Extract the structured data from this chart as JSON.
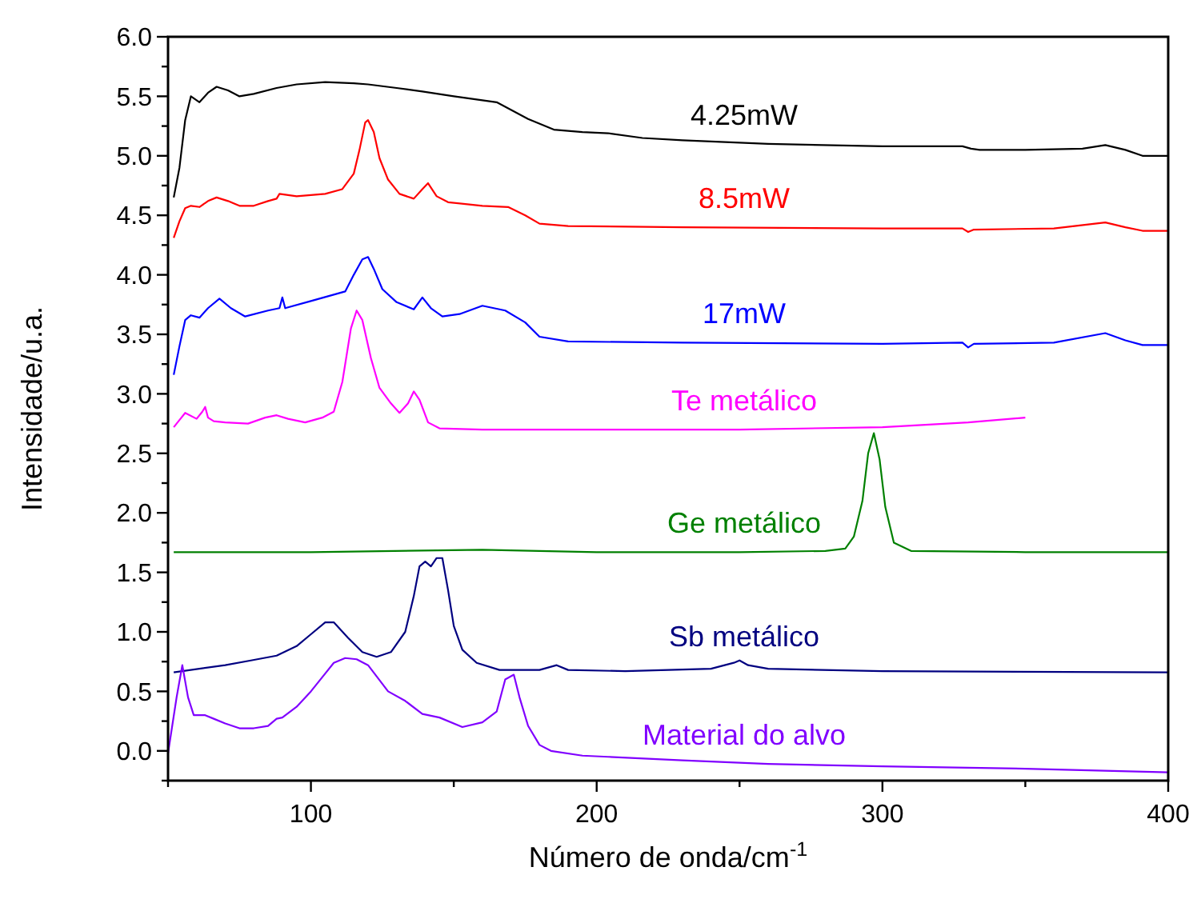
{
  "chart_data": {
    "type": "line",
    "xlabel": "Número de onda/cm$^{-1}$",
    "ylabel": "Intensidade/u.a.",
    "xlim": [
      50,
      400
    ],
    "xticks": [
      {
        "value": 50,
        "label": null
      },
      100,
      {
        "value": 150,
        "label": null
      },
      200,
      {
        "value": 250,
        "label": null
      },
      300,
      {
        "value": 350,
        "label": null
      },
      400
    ],
    "ylim": [
      -0.25,
      6
    ],
    "yticks": [
      {
        "value": -0.25,
        "label": null
      },
      {
        "value": 0,
        "label": "0.0"
      },
      {
        "value": 0.25,
        "label": null
      },
      {
        "value": 0.5,
        "label": "0.5"
      },
      {
        "value": 0.75,
        "label": null
      },
      {
        "value": 1,
        "label": "1.0"
      },
      {
        "value": 1.25,
        "label": null
      },
      {
        "value": 1.5,
        "label": "1.5"
      },
      {
        "value": 1.75,
        "label": null
      },
      {
        "value": 2,
        "label": "2.0"
      },
      {
        "value": 2.25,
        "label": null
      },
      {
        "value": 2.5,
        "label": "2.5"
      },
      {
        "value": 2.75,
        "label": null
      },
      {
        "value": 3,
        "label": "3.0"
      },
      {
        "value": 3.25,
        "label": null
      },
      {
        "value": 3.5,
        "label": "3.5"
      },
      {
        "value": 3.75,
        "label": null
      },
      {
        "value": 4,
        "label": "4.0"
      },
      {
        "value": 4.25,
        "label": null
      },
      {
        "value": 4.5,
        "label": "4.5"
      },
      {
        "value": 4.75,
        "label": null
      },
      {
        "value": 5,
        "label": "5.0"
      },
      {
        "value": 5.25,
        "label": null
      },
      {
        "value": 5.5,
        "label": "5.5"
      },
      {
        "value": 5.75,
        "label": null
      },
      {
        "value": 6,
        "label": "6.0"
      }
    ],
    "series": [
      {
        "name": "4.25mW",
        "color": "#000000",
        "x": [
          52,
          54,
          56,
          58,
          61,
          64,
          67,
          71,
          75,
          80,
          88,
          95,
          105,
          115,
          120,
          130,
          139,
          150,
          165,
          176,
          185,
          195,
          204,
          216,
          230,
          260,
          300,
          328,
          331,
          334,
          350,
          370,
          378,
          385,
          391,
          400
        ],
        "values": [
          4.65,
          4.9,
          5.3,
          5.5,
          5.45,
          5.53,
          5.58,
          5.55,
          5.5,
          5.52,
          5.57,
          5.6,
          5.62,
          5.61,
          5.6,
          5.57,
          5.54,
          5.5,
          5.45,
          5.31,
          5.22,
          5.2,
          5.19,
          5.15,
          5.13,
          5.1,
          5.08,
          5.08,
          5.06,
          5.05,
          5.05,
          5.06,
          5.09,
          5.05,
          5.0,
          5.0
        ]
      },
      {
        "name": "8.5mW",
        "color": "#ff0000",
        "x": [
          52,
          54,
          56,
          58,
          61,
          64,
          67,
          71,
          75,
          80,
          85,
          88,
          89,
          95,
          105,
          111,
          115,
          117,
          119,
          120,
          122,
          124,
          127,
          131,
          136,
          139,
          141,
          144,
          148,
          160,
          169,
          175,
          180,
          190,
          230,
          300,
          328,
          330,
          332,
          360,
          378,
          385,
          391,
          400
        ],
        "values": [
          4.31,
          4.45,
          4.56,
          4.58,
          4.57,
          4.62,
          4.65,
          4.62,
          4.58,
          4.58,
          4.62,
          4.64,
          4.68,
          4.66,
          4.68,
          4.72,
          4.85,
          5.05,
          5.28,
          5.3,
          5.2,
          4.98,
          4.8,
          4.68,
          4.64,
          4.72,
          4.77,
          4.66,
          4.61,
          4.58,
          4.57,
          4.5,
          4.43,
          4.41,
          4.4,
          4.39,
          4.39,
          4.36,
          4.38,
          4.39,
          4.44,
          4.4,
          4.37,
          4.37
        ]
      },
      {
        "name": "17mW",
        "color": "#0000ff",
        "x": [
          52,
          54,
          56,
          58,
          61,
          64,
          68,
          72,
          77,
          85,
          89,
          90,
          91,
          100,
          112,
          115,
          118,
          120,
          122,
          125,
          130,
          136,
          139,
          142,
          146,
          152,
          160,
          168,
          175,
          180,
          190,
          230,
          300,
          328,
          330,
          332,
          360,
          378,
          385,
          391,
          400
        ],
        "values": [
          3.16,
          3.4,
          3.62,
          3.66,
          3.64,
          3.72,
          3.8,
          3.72,
          3.65,
          3.7,
          3.72,
          3.81,
          3.72,
          3.78,
          3.86,
          4.0,
          4.13,
          4.15,
          4.05,
          3.88,
          3.77,
          3.71,
          3.81,
          3.72,
          3.65,
          3.67,
          3.74,
          3.7,
          3.6,
          3.48,
          3.44,
          3.43,
          3.42,
          3.43,
          3.39,
          3.42,
          3.43,
          3.51,
          3.45,
          3.41,
          3.41
        ]
      },
      {
        "name": "Te metálico",
        "color": "#ff00ff",
        "x": [
          52,
          54,
          56,
          60,
          62,
          63,
          64,
          66,
          70,
          78,
          84,
          88,
          92,
          98,
          104,
          108,
          111,
          114,
          116,
          118,
          121,
          124,
          128,
          131,
          134,
          136,
          138,
          141,
          145,
          160,
          200,
          250,
          300,
          330,
          350
        ],
        "values": [
          2.72,
          2.78,
          2.84,
          2.79,
          2.85,
          2.89,
          2.8,
          2.77,
          2.76,
          2.75,
          2.8,
          2.82,
          2.79,
          2.76,
          2.8,
          2.85,
          3.1,
          3.55,
          3.7,
          3.62,
          3.3,
          3.05,
          2.92,
          2.84,
          2.92,
          3.02,
          2.95,
          2.76,
          2.71,
          2.7,
          2.7,
          2.7,
          2.72,
          2.76,
          2.8
        ]
      },
      {
        "name": "Ge metálico",
        "color": "#008000",
        "x": [
          52,
          100,
          160,
          200,
          250,
          280,
          287,
          290,
          293,
          295,
          297,
          299,
          301,
          304,
          310,
          350,
          400
        ],
        "values": [
          1.67,
          1.67,
          1.69,
          1.67,
          1.67,
          1.68,
          1.7,
          1.8,
          2.1,
          2.5,
          2.67,
          2.45,
          2.05,
          1.75,
          1.68,
          1.67,
          1.67
        ]
      },
      {
        "name": "Sb metálico",
        "color": "#000080",
        "x": [
          52,
          70,
          79,
          88,
          95,
          100,
          105,
          108,
          113,
          118,
          123,
          128,
          133,
          136,
          138,
          140,
          142,
          144,
          146,
          148,
          150,
          153,
          158,
          166,
          180,
          186,
          190,
          210,
          240,
          248,
          250,
          253,
          260,
          300,
          400
        ],
        "values": [
          0.66,
          0.72,
          0.76,
          0.8,
          0.88,
          0.98,
          1.08,
          1.08,
          0.95,
          0.83,
          0.79,
          0.83,
          1.0,
          1.3,
          1.55,
          1.59,
          1.55,
          1.62,
          1.62,
          1.35,
          1.05,
          0.85,
          0.74,
          0.68,
          0.68,
          0.72,
          0.68,
          0.67,
          0.69,
          0.74,
          0.76,
          0.72,
          0.69,
          0.67,
          0.66
        ]
      },
      {
        "name": "Material do alvo",
        "color": "#8000ff",
        "x": [
          50,
          53,
          55,
          57,
          59,
          61,
          63,
          66,
          70,
          75,
          80,
          85,
          88,
          90,
          95,
          100,
          105,
          108,
          112,
          116,
          120,
          127,
          133,
          139,
          145,
          153,
          160,
          165,
          168,
          171,
          173,
          176,
          180,
          184,
          195,
          204,
          230,
          260,
          300,
          350,
          400
        ],
        "values": [
          -0.02,
          0.45,
          0.72,
          0.45,
          0.3,
          0.3,
          0.3,
          0.27,
          0.23,
          0.19,
          0.19,
          0.21,
          0.27,
          0.28,
          0.37,
          0.5,
          0.65,
          0.74,
          0.78,
          0.77,
          0.72,
          0.5,
          0.42,
          0.31,
          0.28,
          0.2,
          0.24,
          0.33,
          0.6,
          0.64,
          0.45,
          0.21,
          0.05,
          0.0,
          -0.04,
          -0.05,
          -0.08,
          -0.11,
          -0.13,
          -0.15,
          -0.18
        ]
      }
    ]
  }
}
